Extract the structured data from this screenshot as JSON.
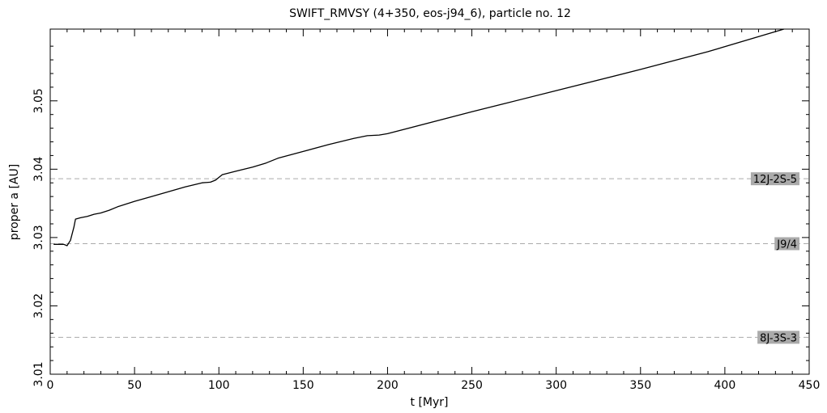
{
  "chart_data": {
    "type": "line",
    "title": "SWIFT_RMVSY (4+350, eos-j94_6), particle no. 12",
    "xlabel": "t [Myr]",
    "ylabel": "proper a [AU]",
    "xlim": [
      0,
      450
    ],
    "ylim": [
      3.01,
      3.0605
    ],
    "x_ticks": [
      0,
      50,
      100,
      150,
      200,
      250,
      300,
      350,
      400,
      450
    ],
    "x_tick_labels": [
      "0",
      "50",
      "100",
      "150",
      "200",
      "250",
      "300",
      "350",
      "400",
      "450"
    ],
    "y_ticks": [
      3.01,
      3.02,
      3.03,
      3.04,
      3.05
    ],
    "y_tick_labels": [
      "3.01",
      "3.02",
      "3.03",
      "3.04",
      "3.05"
    ],
    "grid": false,
    "series": [
      {
        "x": [
          2,
          5,
          8,
          10,
          12,
          14,
          15,
          18,
          22,
          26,
          30,
          35,
          40,
          50,
          60,
          70,
          80,
          90,
          95,
          98,
          102,
          110,
          120,
          128,
          135,
          150,
          165,
          180,
          188,
          195,
          200,
          250,
          300,
          350,
          390,
          435
        ],
        "y": [
          3.029,
          3.029,
          3.029,
          3.0288,
          3.0296,
          3.0315,
          3.0327,
          3.0329,
          3.0331,
          3.0334,
          3.0336,
          3.034,
          3.0345,
          3.0353,
          3.036,
          3.0367,
          3.0374,
          3.038,
          3.0381,
          3.0384,
          3.0392,
          3.0397,
          3.0403,
          3.0409,
          3.0416,
          3.0426,
          3.0436,
          3.0445,
          3.0449,
          3.045,
          3.0452,
          3.0484,
          3.0515,
          3.0546,
          3.0572,
          3.0605
        ]
      }
    ],
    "resonances": [
      {
        "label": "12J-2S-5",
        "a": 3.0386
      },
      {
        "label": "J9/4",
        "a": 3.0291
      },
      {
        "label": "8J-3S-3",
        "a": 3.0154
      }
    ],
    "colors": {
      "line": "#000000",
      "resonance_line": "#aaaaaa",
      "label_box": "#aaaaaa"
    }
  }
}
